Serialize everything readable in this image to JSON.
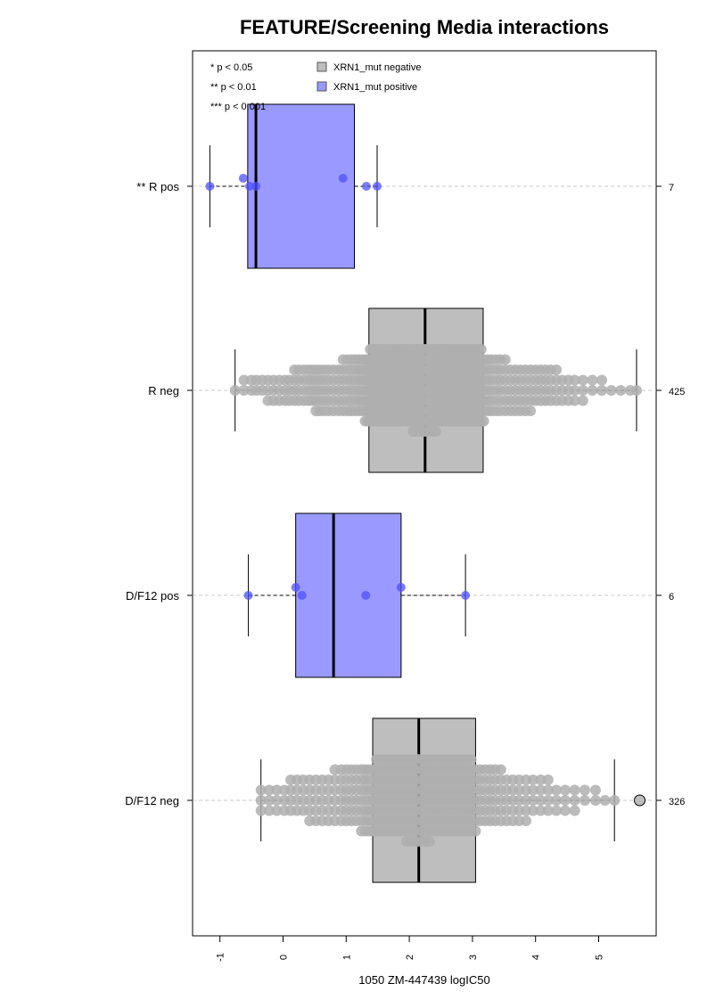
{
  "chart_data": {
    "type": "boxplot",
    "title": "FEATURE/Screening Media interactions",
    "xlabel": "1050 ZM-447439 logIC50",
    "xlim": [
      -1.4,
      5.95
    ],
    "x_ticks": [
      -1,
      0,
      1,
      2,
      3,
      4,
      5
    ],
    "x_tick_labels": [
      "-1",
      "0",
      "1",
      "2",
      "3",
      "4",
      "5"
    ],
    "orientation": "horizontal",
    "grid": "dashed horizontal line per group",
    "legend": {
      "position": "top",
      "significance": [
        "* p < 0.05",
        "** p < 0.01",
        "*** p < 0.001"
      ],
      "entries": [
        {
          "label": "XRN1_mut negative",
          "color": "#bebebe"
        },
        {
          "label": "XRN1_mut positive",
          "color": "#9999ff"
        }
      ]
    },
    "groups": [
      {
        "label": "** R pos",
        "n": "7",
        "status": "positive",
        "whisker_low": -1.16,
        "q1": -0.56,
        "median": -0.43,
        "q3": 1.13,
        "whisker_high": 1.49,
        "points": [
          -1.16,
          -0.63,
          -0.53,
          -0.43,
          0.95,
          1.32,
          1.49
        ]
      },
      {
        "label": "R neg",
        "n": "425",
        "status": "negative",
        "whisker_low": -0.76,
        "q1": 1.36,
        "median": 2.25,
        "q3": 3.17,
        "whisker_high": 5.6,
        "points": [
          -0.76,
          -0.62,
          -0.5,
          -0.42,
          -0.33,
          -0.24,
          -0.15,
          -0.06,
          0.03,
          0.1,
          0.18,
          0.25,
          0.33,
          0.4,
          0.46,
          0.52,
          0.58,
          0.65,
          0.72,
          0.8,
          0.88,
          0.95,
          1.02,
          1.08,
          1.14,
          1.2,
          1.25,
          1.3,
          1.34,
          1.38,
          1.42,
          1.46,
          1.5,
          1.54,
          1.58,
          1.62,
          1.66,
          1.7,
          1.74,
          1.78,
          1.82,
          1.86,
          1.9,
          1.94,
          1.98,
          2.02,
          2.06,
          2.1,
          2.14,
          2.18,
          2.22,
          2.26,
          2.3,
          2.34,
          2.38,
          2.42,
          2.46,
          2.5,
          2.54,
          2.58,
          2.62,
          2.66,
          2.7,
          2.74,
          2.78,
          2.82,
          2.86,
          2.9,
          2.94,
          2.98,
          3.02,
          3.06,
          3.1,
          3.14,
          3.18,
          3.24,
          3.3,
          3.37,
          3.44,
          3.52,
          3.6,
          3.68,
          3.76,
          3.84,
          3.92,
          4.0,
          4.08,
          4.16,
          4.24,
          4.33,
          4.42,
          4.52,
          4.62,
          4.75,
          4.9,
          5.05,
          5.2,
          5.35,
          5.5,
          5.6
        ]
      },
      {
        "label": "D/F12 pos",
        "n": "6",
        "status": "positive",
        "whisker_low": -0.55,
        "q1": 0.2,
        "median": 0.8,
        "q3": 1.87,
        "whisker_high": 2.89,
        "points": [
          -0.55,
          0.2,
          0.3,
          1.31,
          1.87,
          2.89
        ]
      },
      {
        "label": "D/F12 neg",
        "n": "326",
        "status": "negative",
        "whisker_low": -0.35,
        "q1": 1.42,
        "median": 2.15,
        "q3": 3.05,
        "whisker_high": 5.25,
        "outliers": [
          5.65
        ],
        "points": [
          -0.35,
          -0.22,
          -0.1,
          0.02,
          0.12,
          0.22,
          0.32,
          0.42,
          0.52,
          0.62,
          0.72,
          0.82,
          0.92,
          1.0,
          1.08,
          1.16,
          1.24,
          1.3,
          1.36,
          1.42,
          1.48,
          1.54,
          1.6,
          1.66,
          1.72,
          1.78,
          1.84,
          1.9,
          1.96,
          2.02,
          2.08,
          2.14,
          2.2,
          2.26,
          2.32,
          2.38,
          2.44,
          2.5,
          2.56,
          2.62,
          2.68,
          2.74,
          2.8,
          2.86,
          2.92,
          2.98,
          3.05,
          3.12,
          3.2,
          3.28,
          3.36,
          3.45,
          3.54,
          3.64,
          3.74,
          3.85,
          3.96,
          4.08,
          4.2,
          4.33,
          4.47,
          4.62,
          4.78,
          4.95,
          5.1,
          5.25
        ]
      }
    ]
  }
}
